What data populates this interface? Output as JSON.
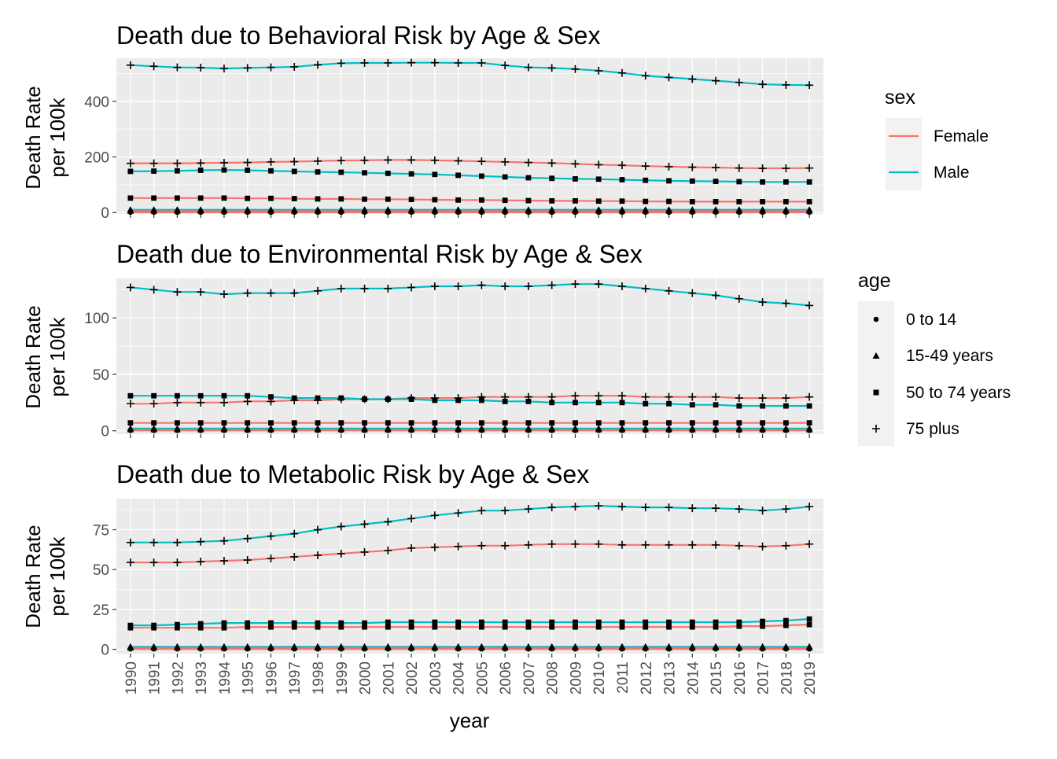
{
  "chart_data": {
    "type": "line",
    "x": [
      1990,
      1991,
      1992,
      1993,
      1994,
      1995,
      1996,
      1997,
      1998,
      1999,
      2000,
      2001,
      2002,
      2003,
      2004,
      2005,
      2006,
      2007,
      2008,
      2009,
      2010,
      2011,
      2012,
      2013,
      2014,
      2015,
      2016,
      2017,
      2018,
      2019
    ],
    "x_tick_labels": [
      "1990",
      "1991",
      "1992",
      "1993",
      "1994",
      "1995",
      "1996",
      "1997",
      "1998",
      "1999",
      "2000",
      "2001",
      "2002",
      "2003",
      "2004",
      "2005",
      "2006",
      "2007",
      "2008",
      "2009",
      "2010",
      "2011",
      "2012",
      "2013",
      "2014",
      "2015",
      "2016",
      "2017",
      "2018",
      "2019"
    ],
    "xlabel": "year",
    "grid": true,
    "colors": {
      "Female": "#F8766D",
      "Male": "#00BFC4",
      "panel_bg": "#EBEBEB",
      "grid": "#FFFFFF"
    },
    "legends": {
      "sex": {
        "title": "sex",
        "items": [
          "Female",
          "Male"
        ]
      },
      "age": {
        "title": "age",
        "items": [
          "0 to 14",
          "15-49 years",
          "50 to 74 years",
          "75 plus"
        ],
        "shapes": [
          "circle",
          "triangle",
          "square",
          "plus"
        ]
      }
    },
    "panels": [
      {
        "title": "Death due to Behavioral Risk by Age & Sex",
        "ylabel": [
          "Death Rate",
          "per 100k"
        ],
        "ylim": [
          -5,
          555
        ],
        "yticks": [
          0,
          200,
          400
        ],
        "series": [
          {
            "sex": "Male",
            "age": "75 plus",
            "values": [
              530,
              526,
              522,
              521,
              518,
              520,
              522,
              524,
              531,
              537,
              538,
              538,
              539,
              539,
              538,
              538,
              529,
              522,
              520,
              516,
              510,
              502,
              492,
              486,
              480,
              474,
              468,
              461,
              459,
              458
            ]
          },
          {
            "sex": "Female",
            "age": "75 plus",
            "values": [
              177,
              177,
              177,
              178,
              179,
              180,
              182,
              183,
              185,
              187,
              188,
              189,
              189,
              188,
              186,
              184,
              182,
              180,
              178,
              175,
              172,
              170,
              167,
              165,
              163,
              162,
              160,
              159,
              159,
              160
            ]
          },
          {
            "sex": "Male",
            "age": "50 to 74 years",
            "values": [
              148,
              149,
              150,
              152,
              153,
              152,
              150,
              148,
              146,
              145,
              143,
              141,
              139,
              137,
              134,
              131,
              128,
              125,
              123,
              121,
              120,
              118,
              116,
              114,
              113,
              112,
              111,
              110,
              110,
              110
            ]
          },
          {
            "sex": "Female",
            "age": "50 to 74 years",
            "values": [
              52,
              52,
              52,
              52,
              52,
              51,
              51,
              50,
              49,
              49,
              48,
              48,
              47,
              46,
              45,
              45,
              44,
              43,
              42,
              42,
              41,
              41,
              40,
              40,
              39,
              39,
              39,
              39,
              39,
              39
            ]
          },
          {
            "sex": "Male",
            "age": "15-49 years",
            "values": [
              10,
              10,
              10,
              10,
              10,
              10,
              10,
              10,
              10,
              10,
              10,
              10,
              10,
              10,
              10,
              10,
              10,
              10,
              10,
              10,
              10,
              10,
              10,
              10,
              10,
              10,
              10,
              10,
              10,
              10
            ]
          },
          {
            "sex": "Female",
            "age": "15-49 years",
            "values": [
              5,
              5,
              5,
              5,
              5,
              5,
              5,
              5,
              5,
              5,
              5,
              5,
              5,
              5,
              5,
              5,
              5,
              5,
              5,
              5,
              5,
              5,
              5,
              5,
              5,
              5,
              5,
              5,
              5,
              5
            ]
          },
          {
            "sex": "Male",
            "age": "0 to 14",
            "values": [
              2,
              2,
              2,
              2,
              2,
              2,
              2,
              2,
              2,
              2,
              2,
              2,
              2,
              2,
              2,
              2,
              2,
              2,
              2,
              2,
              2,
              2,
              2,
              2,
              2,
              2,
              2,
              2,
              2,
              2
            ]
          },
          {
            "sex": "Female",
            "age": "0 to 14",
            "values": [
              1,
              1,
              1,
              1,
              1,
              1,
              1,
              1,
              1,
              1,
              1,
              1,
              1,
              1,
              1,
              1,
              1,
              1,
              1,
              1,
              1,
              1,
              1,
              1,
              1,
              1,
              1,
              1,
              1,
              1
            ]
          }
        ]
      },
      {
        "title": "Death due to Environmental Risk by Age & Sex",
        "ylabel": [
          "Death Rate",
          "per 100k"
        ],
        "ylim": [
          -3,
          135
        ],
        "yticks": [
          0,
          50,
          100
        ],
        "series": [
          {
            "sex": "Male",
            "age": "75 plus",
            "values": [
              127,
              125,
              123,
              123,
              121,
              122,
              122,
              122,
              124,
              126,
              126,
              126,
              127,
              128,
              128,
              129,
              128,
              128,
              129,
              130,
              130,
              128,
              126,
              124,
              122,
              120,
              117,
              114,
              113,
              111
            ]
          },
          {
            "sex": "Female",
            "age": "75 plus",
            "values": [
              24,
              24,
              25,
              25,
              25,
              26,
              26,
              27,
              27,
              28,
              28,
              28,
              29,
              29,
              29,
              30,
              30,
              30,
              30,
              31,
              31,
              31,
              30,
              30,
              30,
              30,
              29,
              29,
              29,
              30
            ]
          },
          {
            "sex": "Male",
            "age": "50 to 74 years",
            "values": [
              31,
              31,
              31,
              31,
              31,
              31,
              30,
              29,
              29,
              29,
              28,
              28,
              28,
              27,
              27,
              27,
              26,
              26,
              25,
              25,
              25,
              25,
              24,
              24,
              23,
              23,
              22,
              22,
              22,
              22
            ]
          },
          {
            "sex": "Female",
            "age": "50 to 74 years",
            "values": [
              7,
              7,
              7,
              7,
              7,
              7,
              7,
              7,
              7,
              7,
              7,
              7,
              7,
              7,
              7,
              7,
              7,
              7,
              7,
              7,
              7,
              7,
              7,
              7,
              7,
              7,
              7,
              7,
              7,
              7
            ]
          },
          {
            "sex": "Male",
            "age": "15-49 years",
            "values": [
              2,
              2,
              2,
              2,
              2,
              2,
              2,
              2,
              2,
              2,
              2,
              2,
              2,
              2,
              2,
              2,
              2,
              2,
              2,
              2,
              2,
              2,
              2,
              2,
              2,
              2,
              2,
              2,
              2,
              2
            ]
          },
          {
            "sex": "Female",
            "age": "15-49 years",
            "values": [
              1,
              1,
              1,
              1,
              1,
              1,
              1,
              1,
              1,
              1,
              1,
              1,
              1,
              1,
              1,
              1,
              1,
              1,
              1,
              1,
              1,
              1,
              1,
              1,
              1,
              1,
              1,
              1,
              1,
              1
            ]
          },
          {
            "sex": "Male",
            "age": "0 to 14",
            "values": [
              0.6,
              0.6,
              0.6,
              0.6,
              0.6,
              0.6,
              0.6,
              0.6,
              0.6,
              0.6,
              0.6,
              0.6,
              0.6,
              0.6,
              0.6,
              0.6,
              0.6,
              0.6,
              0.6,
              0.6,
              0.6,
              0.6,
              0.6,
              0.6,
              0.6,
              0.6,
              0.6,
              0.6,
              0.6,
              0.6
            ]
          },
          {
            "sex": "Female",
            "age": "0 to 14",
            "values": [
              0.3,
              0.3,
              0.3,
              0.3,
              0.3,
              0.3,
              0.3,
              0.3,
              0.3,
              0.3,
              0.3,
              0.3,
              0.3,
              0.3,
              0.3,
              0.3,
              0.3,
              0.3,
              0.3,
              0.3,
              0.3,
              0.3,
              0.3,
              0.3,
              0.3,
              0.3,
              0.3,
              0.3,
              0.3,
              0.3
            ]
          }
        ]
      },
      {
        "title": "Death due to Metabolic Risk by Age & Sex",
        "ylabel": [
          "Death Rate",
          "per 100k"
        ],
        "ylim": [
          -2.7,
          94.5
        ],
        "yticks": [
          0,
          25,
          50,
          75
        ],
        "series": [
          {
            "sex": "Male",
            "age": "75 plus",
            "values": [
              67,
              67,
              67,
              67.5,
              68,
              69.5,
              71,
              72.5,
              75,
              77,
              78.5,
              80,
              82,
              84,
              85.5,
              87,
              87,
              88,
              89,
              89.5,
              90,
              89.5,
              89,
              89,
              88.5,
              88.5,
              88,
              87,
              88,
              89.5
            ]
          },
          {
            "sex": "Female",
            "age": "75 plus",
            "values": [
              54.5,
              54.5,
              54.5,
              55,
              55.5,
              56,
              57,
              58,
              59,
              60,
              61,
              62,
              63.5,
              64,
              64.5,
              65,
              65,
              65.5,
              66,
              66,
              66,
              65.5,
              65.5,
              65.5,
              65.5,
              65.5,
              65,
              64.5,
              65,
              66
            ]
          },
          {
            "sex": "Male",
            "age": "50 to 74 years",
            "values": [
              15,
              15,
              15.5,
              16,
              16.5,
              16.5,
              16.5,
              16.5,
              16.5,
              16.5,
              16.5,
              17,
              17,
              17,
              17,
              17,
              17,
              17,
              17,
              17,
              17,
              17,
              17,
              17,
              17,
              17,
              17,
              17.5,
              18,
              19
            ]
          },
          {
            "sex": "Female",
            "age": "50 to 74 years",
            "values": [
              13.5,
              13.5,
              13.5,
              13.5,
              13.5,
              14,
              14,
              14,
              14,
              14,
              14,
              14,
              14,
              14,
              14,
              14,
              14,
              14,
              14,
              14,
              14,
              14,
              14,
              14,
              14,
              14,
              14.5,
              14.5,
              15,
              15.5
            ]
          },
          {
            "sex": "Male",
            "age": "15-49 years",
            "values": [
              1.6,
              1.6,
              1.6,
              1.6,
              1.6,
              1.6,
              1.6,
              1.6,
              1.6,
              1.6,
              1.6,
              1.6,
              1.6,
              1.6,
              1.6,
              1.6,
              1.6,
              1.6,
              1.6,
              1.6,
              1.6,
              1.6,
              1.6,
              1.6,
              1.6,
              1.6,
              1.6,
              1.6,
              1.6,
              1.6
            ]
          },
          {
            "sex": "Female",
            "age": "15-49 years",
            "values": [
              0.9,
              0.9,
              0.9,
              0.9,
              0.9,
              0.9,
              0.9,
              0.9,
              0.9,
              0.9,
              0.9,
              0.9,
              0.9,
              0.9,
              0.9,
              0.9,
              0.9,
              0.9,
              0.9,
              0.9,
              0.9,
              0.9,
              0.9,
              0.9,
              0.9,
              0.9,
              0.9,
              0.9,
              0.9,
              0.9
            ]
          },
          {
            "sex": "Male",
            "age": "0 to 14",
            "values": [
              0.4,
              0.4,
              0.4,
              0.4,
              0.4,
              0.4,
              0.4,
              0.4,
              0.4,
              0.4,
              0.4,
              0.4,
              0.4,
              0.4,
              0.4,
              0.4,
              0.4,
              0.4,
              0.4,
              0.4,
              0.4,
              0.4,
              0.4,
              0.4,
              0.4,
              0.4,
              0.4,
              0.4,
              0.4,
              0.4
            ]
          },
          {
            "sex": "Female",
            "age": "0 to 14",
            "values": [
              0.2,
              0.2,
              0.2,
              0.2,
              0.2,
              0.2,
              0.2,
              0.2,
              0.2,
              0.2,
              0.2,
              0.2,
              0.2,
              0.2,
              0.2,
              0.2,
              0.2,
              0.2,
              0.2,
              0.2,
              0.2,
              0.2,
              0.2,
              0.2,
              0.2,
              0.2,
              0.2,
              0.2,
              0.2,
              0.2
            ]
          }
        ]
      }
    ]
  }
}
